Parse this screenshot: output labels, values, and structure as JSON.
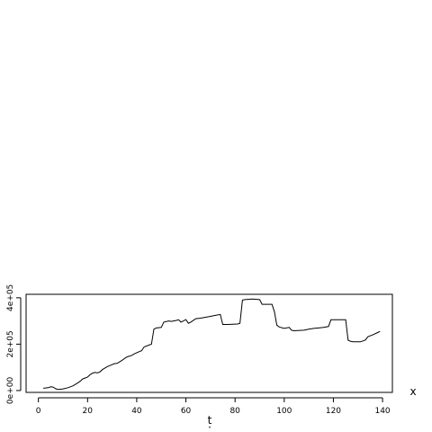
{
  "chart_data": {
    "type": "line",
    "xlabel": "t",
    "xlabel_sub": "ˇ",
    "ylabel": "",
    "series_label": "x",
    "xlim": [
      -5,
      144
    ],
    "ylim": [
      -8000,
      415000
    ],
    "xticks": [
      0,
      20,
      40,
      60,
      80,
      100,
      120,
      140
    ],
    "xtick_labels": [
      "0",
      "20",
      "40",
      "60",
      "80",
      "100",
      "120",
      "140"
    ],
    "yticks": [
      0,
      200000,
      400000
    ],
    "ytick_labels": [
      "0e+00",
      "2e+05",
      "4e+05"
    ],
    "series": [
      {
        "x": [
          2,
          4,
          5,
          6,
          7,
          8,
          10,
          12,
          14,
          15,
          16,
          17,
          18,
          20,
          21,
          22,
          23,
          24,
          25,
          26,
          28,
          30,
          31,
          32,
          34,
          35,
          36,
          38,
          39,
          40,
          42,
          43,
          46,
          47,
          48,
          50,
          51,
          53,
          54,
          56,
          57,
          58,
          59,
          60,
          61,
          62,
          64,
          66,
          68,
          70,
          72,
          74,
          75,
          77,
          79,
          81,
          82,
          83,
          84,
          87,
          90,
          91,
          95,
          96,
          97,
          98,
          100,
          102,
          103,
          104,
          108,
          110,
          112,
          114,
          116,
          118,
          119,
          120,
          123,
          125,
          126,
          127,
          128,
          131,
          133,
          134,
          136,
          138,
          139
        ],
        "y": [
          10000,
          12000,
          16000,
          15000,
          8000,
          5000,
          7000,
          12000,
          20000,
          26000,
          33000,
          40000,
          50000,
          58000,
          68000,
          75000,
          78000,
          76000,
          80000,
          90000,
          103000,
          112000,
          116000,
          117000,
          130000,
          138000,
          145000,
          152000,
          158000,
          163000,
          172000,
          188000,
          200000,
          265000,
          270000,
          272000,
          295000,
          300000,
          298000,
          302000,
          305000,
          295000,
          300000,
          306000,
          290000,
          295000,
          310000,
          312000,
          316000,
          320000,
          324000,
          328000,
          285000,
          285000,
          286000,
          287000,
          290000,
          390000,
          392000,
          395000,
          392000,
          372000,
          372000,
          340000,
          282000,
          274000,
          268000,
          272000,
          260000,
          258000,
          260000,
          265000,
          268000,
          270000,
          272000,
          276000,
          305000,
          305000,
          305000,
          305000,
          217000,
          212000,
          210000,
          210000,
          218000,
          232000,
          240000,
          250000,
          255000
        ]
      }
    ],
    "grid": false,
    "legend": "none"
  }
}
